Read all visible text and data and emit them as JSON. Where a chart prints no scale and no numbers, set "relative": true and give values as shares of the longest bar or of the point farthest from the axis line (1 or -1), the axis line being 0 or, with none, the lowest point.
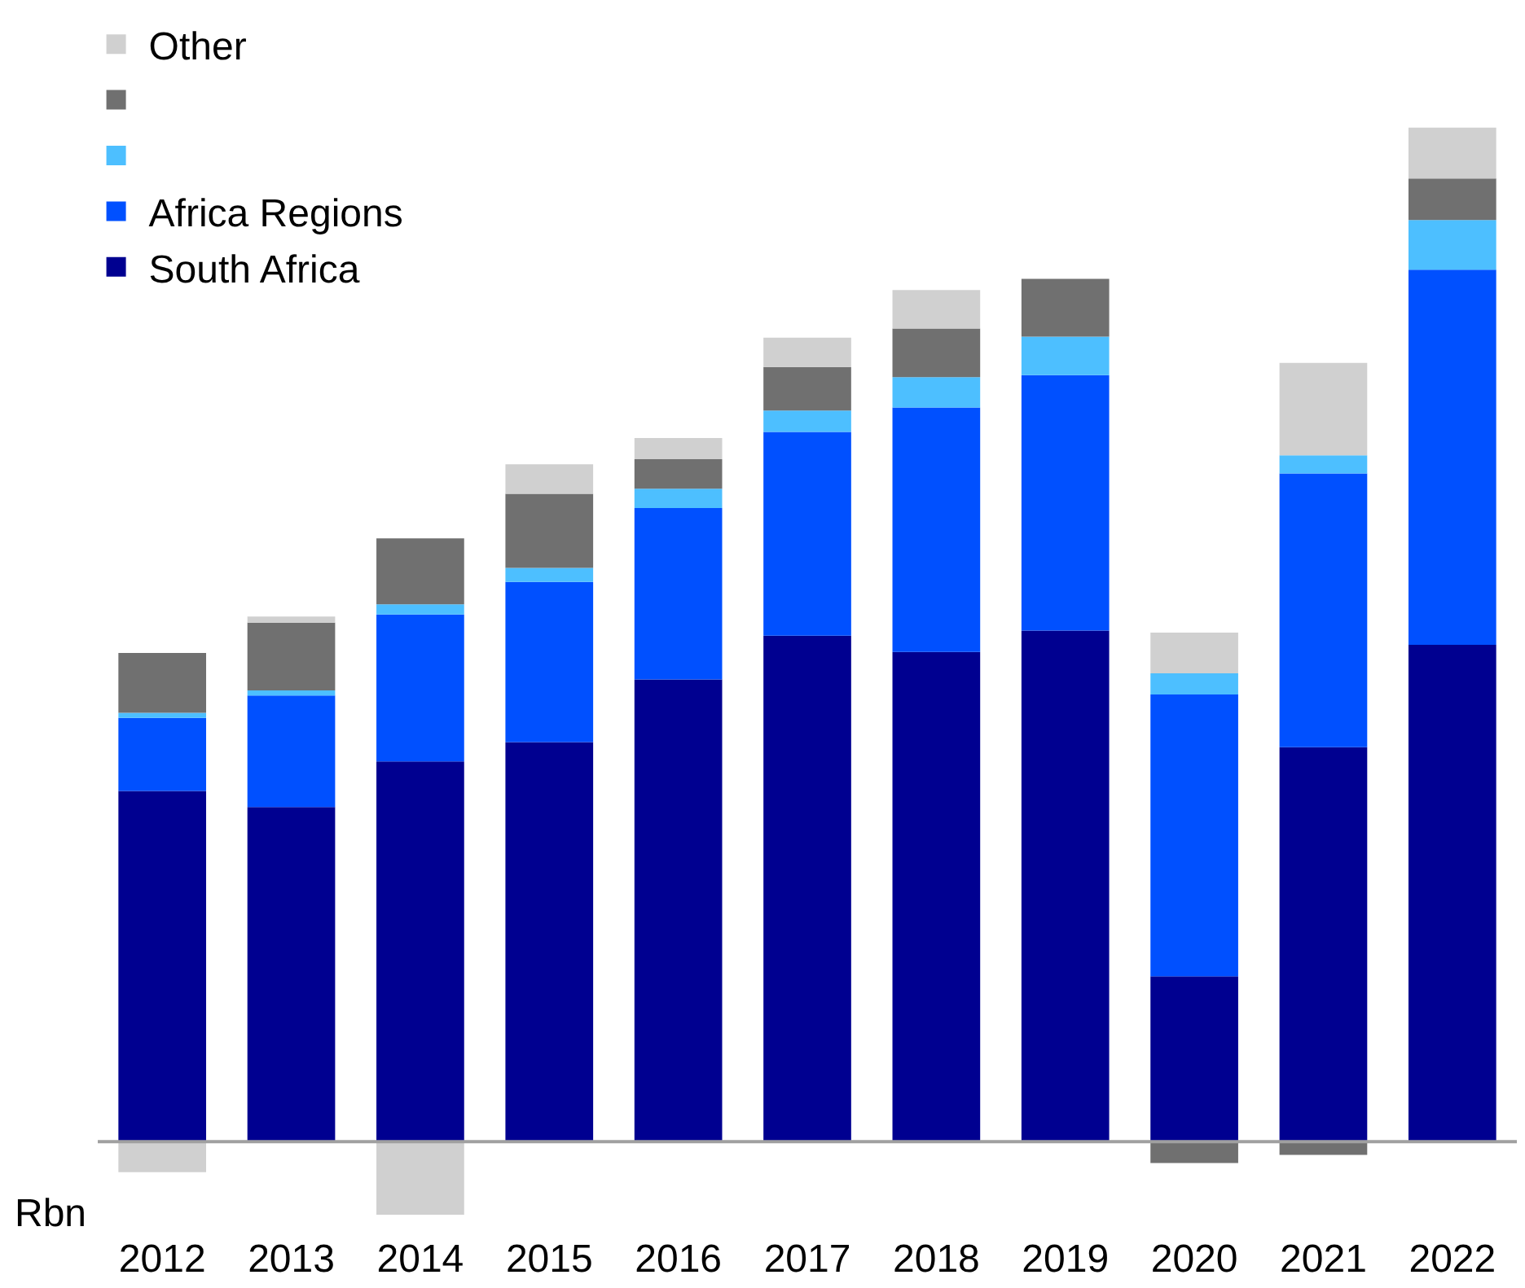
{
  "chart_data": {
    "type": "bar",
    "stacked": true,
    "relative": true,
    "legend": "top left",
    "categories": [
      "2012",
      "2013",
      "2014",
      "2015",
      "2016",
      "2017",
      "2018",
      "2019",
      "2020",
      "2021",
      "2022"
    ],
    "series": [
      {
        "name": "South Africa",
        "color": "#000090",
        "values": [
          0.346,
          0.33,
          0.375,
          0.394,
          0.456,
          0.499,
          0.483,
          0.504,
          0.163,
          0.389,
          0.49
        ]
      },
      {
        "name": "Africa Regions",
        "color": "#0050ff",
        "values": [
          0.072,
          0.11,
          0.145,
          0.158,
          0.169,
          0.201,
          0.241,
          0.252,
          0.278,
          0.27,
          0.37
        ]
      },
      {
        "color": "#4dbfff",
        "values": [
          0.005,
          0.005,
          0.01,
          0.014,
          0.019,
          0.021,
          0.03,
          0.038,
          0.021,
          0.018,
          0.049
        ]
      },
      {
        "color": "#707070",
        "values": [
          0.059,
          0.067,
          0.065,
          0.073,
          0.029,
          0.043,
          0.048,
          0.057,
          -0.021,
          -0.013,
          0.041
        ]
      },
      {
        "name": "Other",
        "color": "#d0d0d0",
        "values": [
          -0.03,
          0.006,
          -0.072,
          0.029,
          0.021,
          0.029,
          0.038,
          0,
          0.04,
          0.091,
          0.05
        ]
      }
    ],
    "annotations": [
      "Rbn"
    ]
  }
}
